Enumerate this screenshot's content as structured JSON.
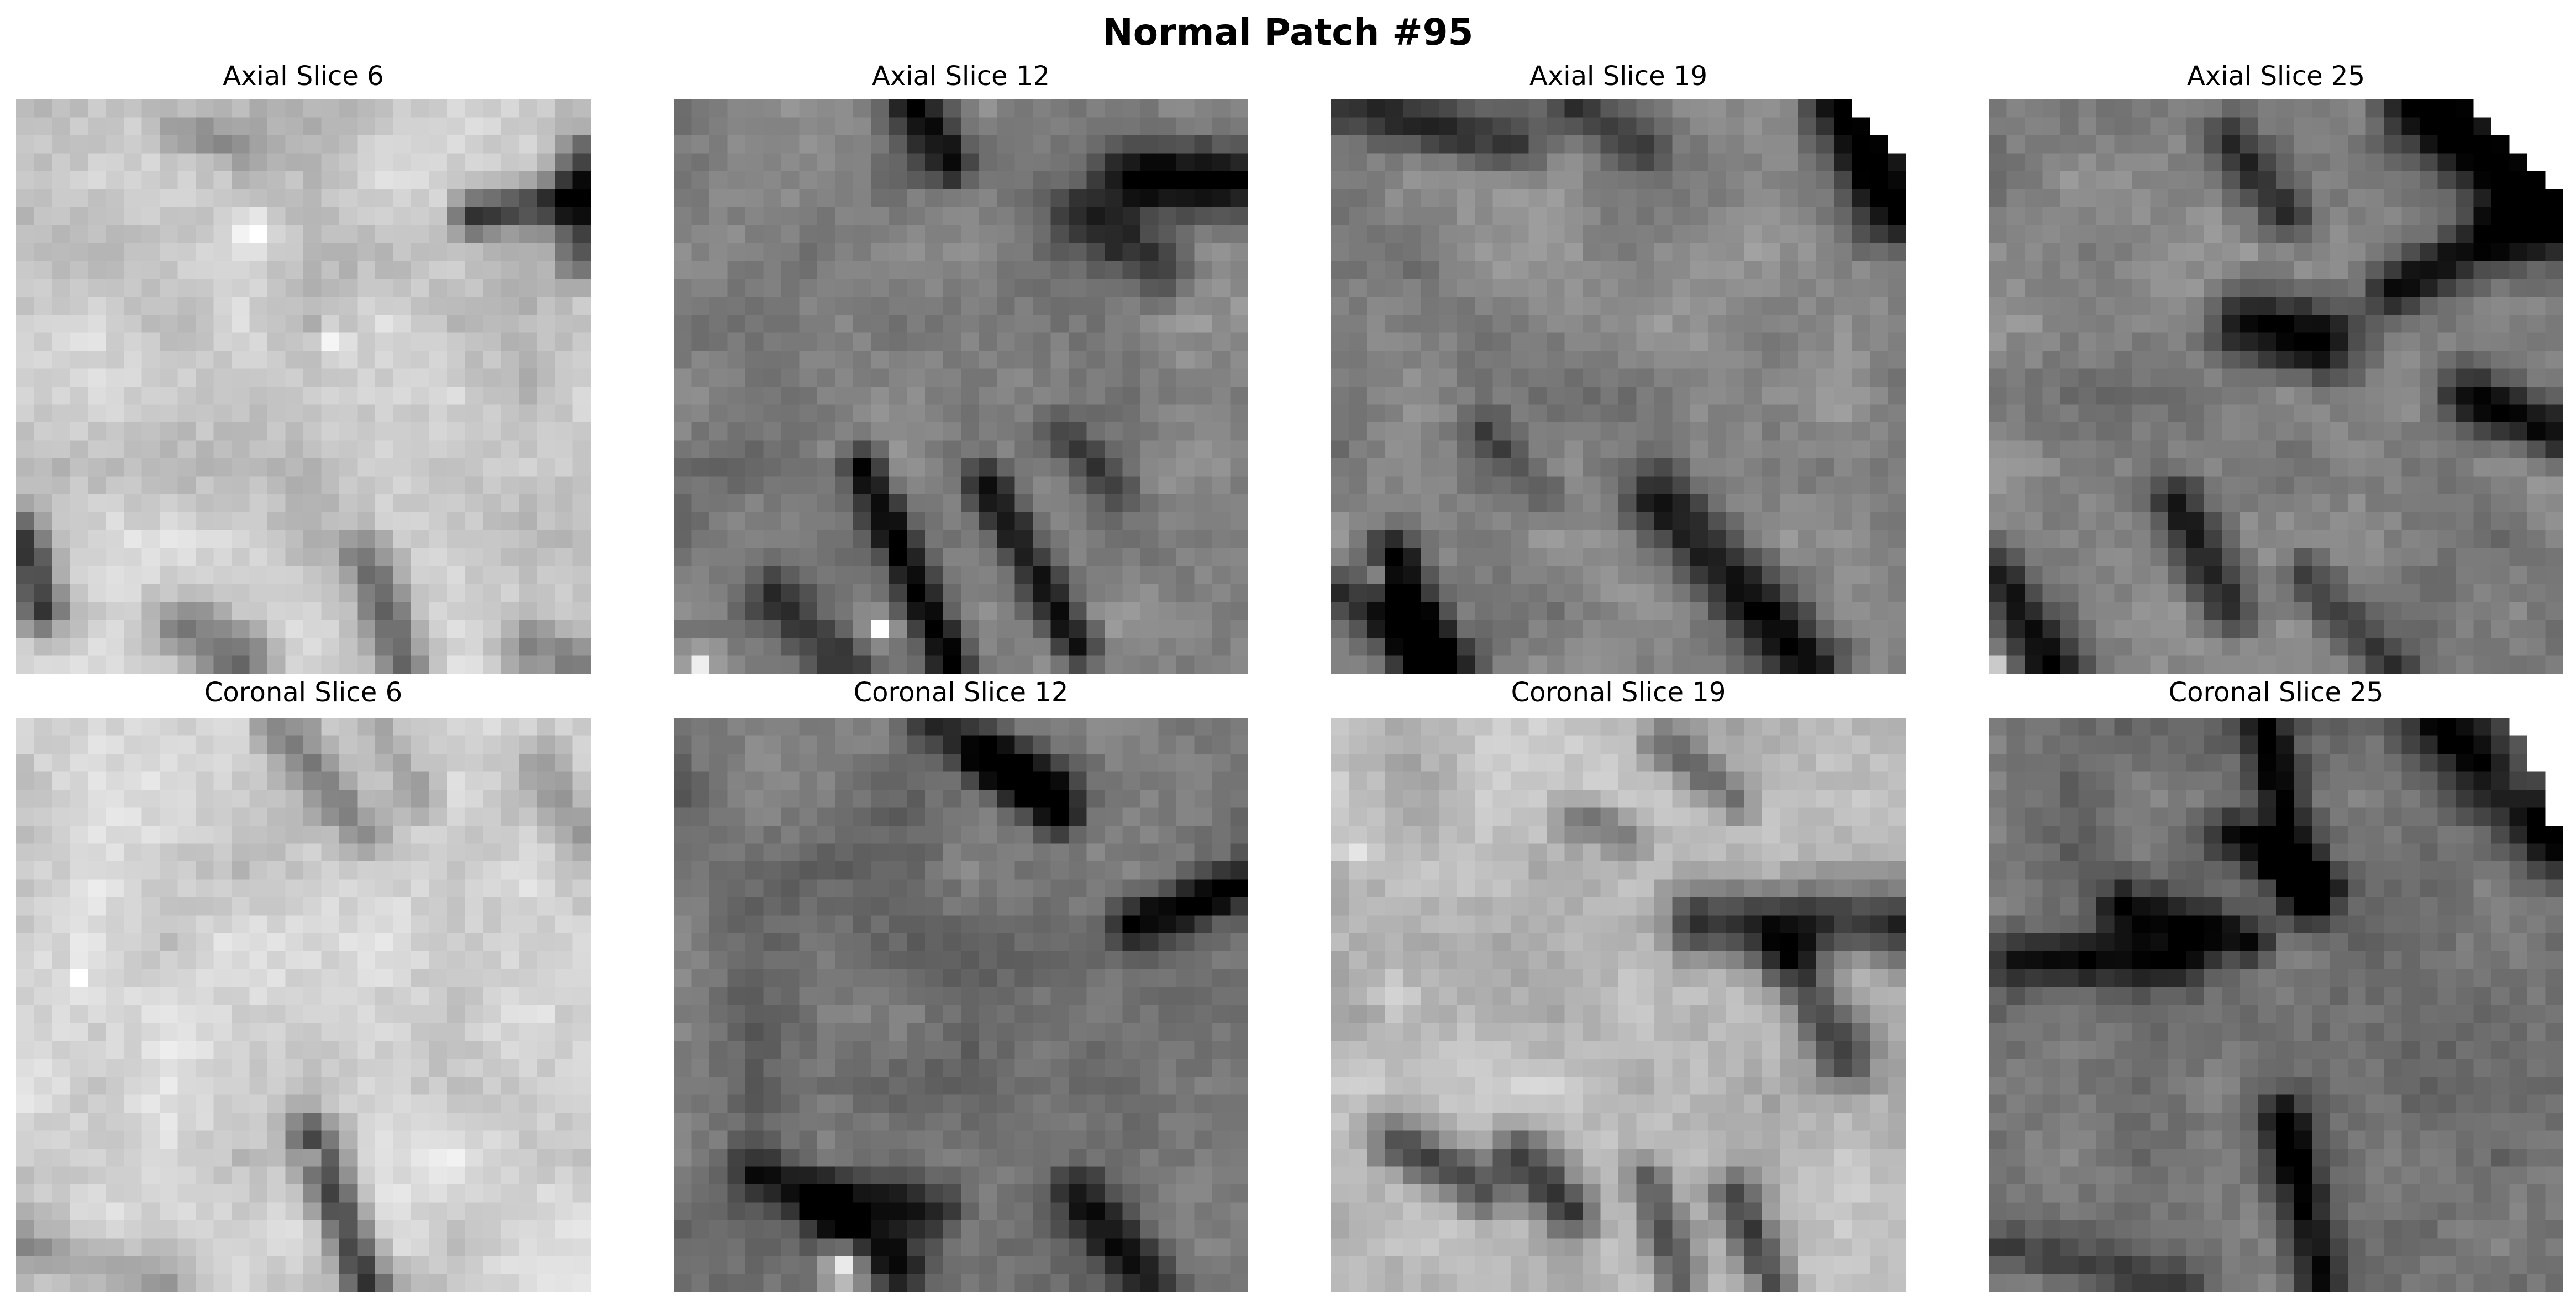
{
  "figure": {
    "title": "Normal Patch #95"
  },
  "panels": [
    {
      "label": "Axial Slice 6",
      "plane": "axial",
      "slice": 6,
      "mean_intensity": 0.78
    },
    {
      "label": "Axial Slice 12",
      "plane": "axial",
      "slice": 12,
      "mean_intensity": 0.5
    },
    {
      "label": "Axial Slice 19",
      "plane": "axial",
      "slice": 19,
      "mean_intensity": 0.52
    },
    {
      "label": "Axial Slice 25",
      "plane": "axial",
      "slice": 25,
      "mean_intensity": 0.5
    },
    {
      "label": "Coronal Slice 6",
      "plane": "coronal",
      "slice": 6,
      "mean_intensity": 0.82
    },
    {
      "label": "Coronal Slice 12",
      "plane": "coronal",
      "slice": 12,
      "mean_intensity": 0.45
    },
    {
      "label": "Coronal Slice 19",
      "plane": "coronal",
      "slice": 19,
      "mean_intensity": 0.72
    },
    {
      "label": "Coronal Slice 25",
      "plane": "coronal",
      "slice": 25,
      "mean_intensity": 0.45
    }
  ],
  "colormap": "gray"
}
